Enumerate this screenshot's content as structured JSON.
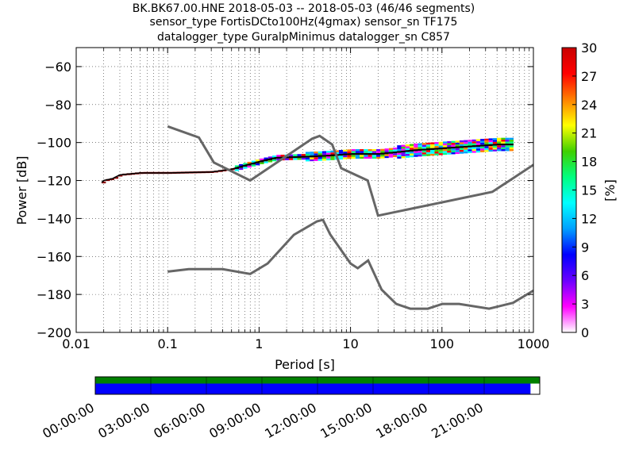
{
  "header": {
    "title_line1": "BK.BK67.00.HNE   2018-05-03 -- 2018-05-03  (46/46 segments)",
    "title_line2": "sensor_type FortisDCto100Hz(4gmax) sensor_sn TF175",
    "title_line3": "datalogger_type GuralpMinimus datalogger_sn C857"
  },
  "chart_data": {
    "type": "heatmap",
    "xlabel": "Period [s]",
    "ylabel": "Power [dB]",
    "xscale": "log",
    "xlim": [
      0.01,
      1000
    ],
    "ylim": [
      -200,
      -50
    ],
    "x_ticks": [
      {
        "value": 0.01,
        "label": "0.01"
      },
      {
        "value": 0.1,
        "label": "0.1"
      },
      {
        "value": 1,
        "label": "1"
      },
      {
        "value": 10,
        "label": "10"
      },
      {
        "value": 100,
        "label": "100"
      },
      {
        "value": 1000,
        "label": "1000"
      }
    ],
    "y_ticks": [
      {
        "value": -60,
        "label": "−60"
      },
      {
        "value": -80,
        "label": "−80"
      },
      {
        "value": -100,
        "label": "−100"
      },
      {
        "value": -120,
        "label": "−120"
      },
      {
        "value": -140,
        "label": "−140"
      },
      {
        "value": -160,
        "label": "−160"
      },
      {
        "value": -180,
        "label": "−180"
      },
      {
        "value": -200,
        "label": "−200"
      }
    ],
    "grid": true,
    "noise_models": [
      {
        "points": [
          [
            0.1,
            -91.5
          ],
          [
            0.22,
            -97.4
          ],
          [
            0.32,
            -110.5
          ],
          [
            0.8,
            -120
          ],
          [
            3.8,
            -98
          ],
          [
            4.6,
            -96.5
          ],
          [
            6.3,
            -101
          ],
          [
            7.9,
            -113.5
          ],
          [
            15.4,
            -120
          ],
          [
            20,
            -138.5
          ],
          [
            354.8,
            -126
          ],
          [
            10000,
            -80
          ]
        ]
      },
      {
        "points": [
          [
            0.1,
            -168
          ],
          [
            0.17,
            -166.7
          ],
          [
            0.4,
            -166.7
          ],
          [
            0.8,
            -169.2
          ],
          [
            1.24,
            -163.7
          ],
          [
            2.4,
            -148.6
          ],
          [
            4.3,
            -141.5
          ],
          [
            5,
            -140.7
          ],
          [
            6,
            -148.4
          ],
          [
            10,
            -163.7
          ],
          [
            12,
            -166.2
          ],
          [
            15.6,
            -162.1
          ],
          [
            21.9,
            -177.5
          ],
          [
            31.6,
            -185
          ],
          [
            45,
            -187.5
          ],
          [
            70,
            -187.5
          ],
          [
            101,
            -185
          ],
          [
            154,
            -185
          ],
          [
            328,
            -187.5
          ],
          [
            600,
            -184.4
          ],
          [
            1000,
            -178
          ]
        ]
      }
    ],
    "psd_median": [
      [
        0.019,
        -121
      ],
      [
        0.02,
        -120
      ],
      [
        0.025,
        -119
      ],
      [
        0.03,
        -117
      ],
      [
        0.05,
        -116
      ],
      [
        0.1,
        -116
      ],
      [
        0.3,
        -115.5
      ],
      [
        0.5,
        -114
      ],
      [
        0.7,
        -112
      ],
      [
        1,
        -110
      ],
      [
        1.5,
        -108
      ],
      [
        3,
        -107.5
      ],
      [
        5,
        -107
      ],
      [
        10,
        -106
      ],
      [
        20,
        -106
      ],
      [
        50,
        -104
      ],
      [
        100,
        -103
      ],
      [
        200,
        -102
      ],
      [
        400,
        -101
      ],
      [
        600,
        -101
      ]
    ],
    "colorbar": {
      "label": "[%]",
      "range": [
        0,
        30
      ],
      "ticks": [
        "0",
        "3",
        "6",
        "9",
        "12",
        "15",
        "18",
        "21",
        "24",
        "27",
        "30"
      ],
      "colors": [
        "#ffffff",
        "#ff00ff",
        "#6a00ff",
        "#0000ff",
        "#00a0ff",
        "#00ffff",
        "#00ff80",
        "#40d000",
        "#ffff00",
        "#ff8000",
        "#ff0000",
        "#c80000"
      ]
    },
    "timeline": {
      "ticks": [
        "00:00:00",
        "03:00:00",
        "06:00:00",
        "09:00:00",
        "12:00:00",
        "15:00:00",
        "18:00:00",
        "21:00:00"
      ],
      "data_coverage_end_hours": 23.5,
      "total_hours": 24,
      "colors": {
        "top": "#008000",
        "bottom": "#0000ff"
      }
    }
  }
}
